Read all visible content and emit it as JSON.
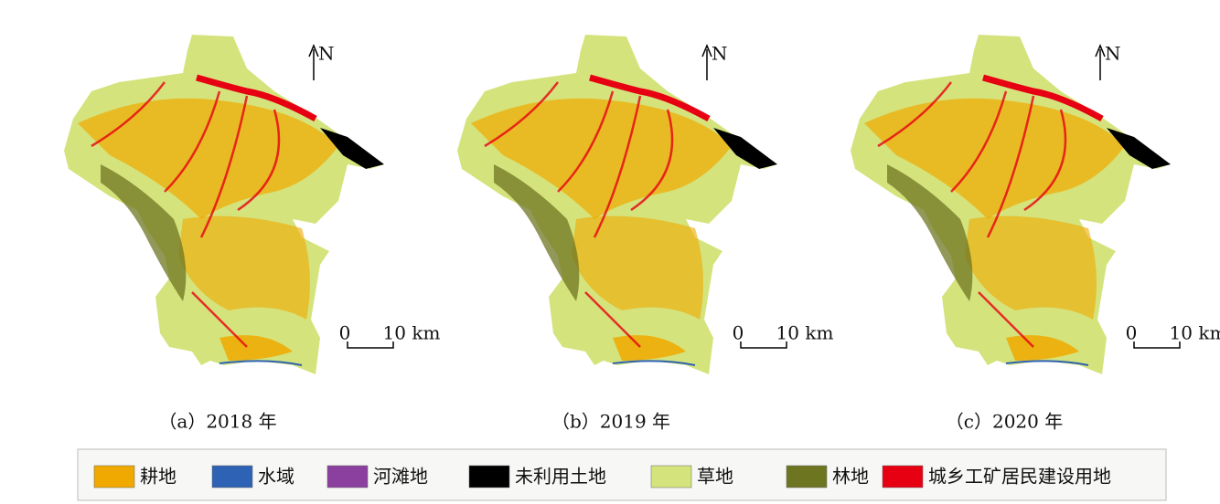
{
  "panels": [
    {
      "caption": "（a）2018 年",
      "north": "N",
      "scale_start": "0",
      "scale_end": "10 km"
    },
    {
      "caption": "（b）2019 年",
      "north": "N",
      "scale_start": "0",
      "scale_end": "10 km"
    },
    {
      "caption": "（c）2020 年",
      "north": "N",
      "scale_start": "0",
      "scale_end": "10 km"
    }
  ],
  "legend": [
    {
      "label": "耕地",
      "color": "#f0a900"
    },
    {
      "label": "水域",
      "color": "#2e62b4"
    },
    {
      "label": "河滩地",
      "color": "#8b3f9f"
    },
    {
      "label": "未利用土地",
      "color": "#000000"
    },
    {
      "label": "草地",
      "color": "#d5e37c"
    },
    {
      "label": "林地",
      "color": "#6e7521"
    },
    {
      "label": "城乡工矿居民建设用地",
      "color": "#e60012"
    }
  ]
}
